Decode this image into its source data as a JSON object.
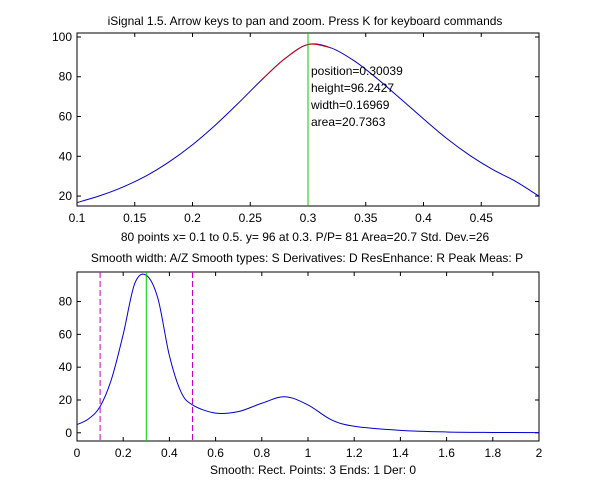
{
  "top_chart": {
    "title": "iSignal 1.5. Arrow keys to pan and zoom. Press K for keyboard commands",
    "xlim": [
      0.1,
      0.5
    ],
    "ylim": [
      15,
      102
    ],
    "xticks": [
      0.1,
      0.15,
      0.2,
      0.25,
      0.3,
      0.35,
      0.4,
      0.45
    ],
    "xtick_labels": [
      "0.1",
      "0.15",
      "0.2",
      "0.25",
      "0.3",
      "0.35",
      "0.4",
      "0.45"
    ],
    "yticks": [
      20,
      40,
      60,
      80,
      100
    ],
    "ytick_labels": [
      "20",
      "40",
      "60",
      "80",
      "100"
    ],
    "info_line": "80 points  x= 0.1 to 0.5.  y= 96 at 0.3.  P/P= 81   Area=20.7   Std. Dev.=26",
    "peak_annotations": [
      "position=0.30039",
      "height=96.2427",
      "width=0.16969",
      "area=20.7363"
    ],
    "signal_color": "#0000cc",
    "fit_color": "#cc0000",
    "marker_color": "#00cc00"
  },
  "bottom_chart": {
    "header": "Smooth width: A/Z    Smooth types: S    Derivatives: D     ResEnhance: R     Peak Meas: P",
    "xlim": [
      0,
      2
    ],
    "ylim": [
      -5,
      98
    ],
    "xticks": [
      0,
      0.2,
      0.4,
      0.6,
      0.8,
      1,
      1.2,
      1.4,
      1.6,
      1.8,
      2
    ],
    "xtick_labels": [
      "0",
      "0.2",
      "0.4",
      "0.6",
      "0.8",
      "1",
      "1.2",
      "1.4",
      "1.6",
      "1.8",
      "2"
    ],
    "yticks": [
      0,
      20,
      40,
      60,
      80
    ],
    "ytick_labels": [
      "0",
      "20",
      "40",
      "60",
      "80"
    ],
    "status_line": "Smooth: Rect.     Points: 3     Ends: 1     Der: 0",
    "range_markers_x": [
      0.1,
      0.5
    ],
    "center_marker_x": 0.3,
    "signal_color": "#0000cc",
    "range_color": "#cc00cc",
    "marker_color": "#00cc00"
  },
  "chart_data": [
    {
      "type": "line",
      "title": "iSignal 1.5. Arrow keys to pan and zoom. Press K for keyboard commands",
      "x": [
        0.1,
        0.12,
        0.14,
        0.16,
        0.18,
        0.2,
        0.22,
        0.24,
        0.26,
        0.28,
        0.3,
        0.32,
        0.34,
        0.36,
        0.38,
        0.4,
        0.42,
        0.44,
        0.46,
        0.48,
        0.5
      ],
      "series": [
        {
          "values": [
            16.7,
            20.2,
            24.6,
            30.2,
            37.3,
            45.8,
            55.8,
            66.9,
            78.5,
            89.1,
            96.2,
            94.5,
            88.0,
            79.0,
            69.0,
            58.8,
            49.0,
            40.5,
            33.3,
            27.3,
            19.9
          ]
        }
      ],
      "xlim": [
        0.1,
        0.5
      ],
      "ylim": [
        15,
        102
      ]
    },
    {
      "type": "line",
      "x": [
        0,
        0.05,
        0.1,
        0.15,
        0.2,
        0.25,
        0.3,
        0.35,
        0.4,
        0.45,
        0.5,
        0.6,
        0.7,
        0.8,
        0.9,
        1.0,
        1.1,
        1.2,
        1.4,
        1.6,
        1.8,
        2.0
      ],
      "series": [
        {
          "values": [
            5,
            8.5,
            16,
            33,
            60,
            91,
            96,
            82,
            47,
            25,
            17,
            12,
            13,
            18,
            22,
            17,
            8,
            4,
            1.5,
            0.5,
            0.2,
            0.1
          ]
        }
      ],
      "xlim": [
        0,
        2
      ],
      "ylim": [
        -5,
        98
      ]
    }
  ]
}
